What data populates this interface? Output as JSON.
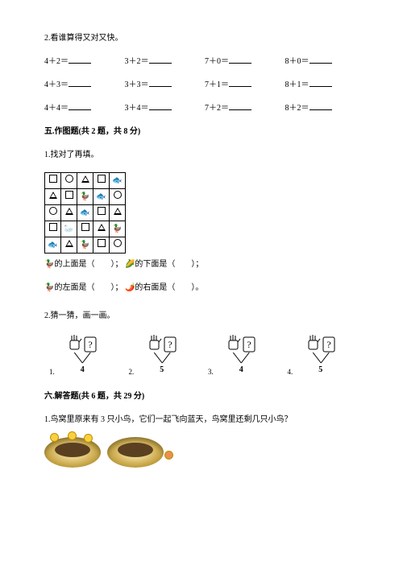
{
  "q2_title": "2.看谁算得又对又快。",
  "arith": {
    "rows": [
      [
        "4＋2＝",
        "3＋2＝",
        "7＋0＝",
        "8＋0＝"
      ],
      [
        "4＋3＝",
        "3＋3＝",
        "7＋1＝",
        "8＋1＝"
      ],
      [
        "4＋4＝",
        "3＋4＝",
        "7＋2＝",
        "8＋2＝"
      ]
    ]
  },
  "section5": {
    "title": "五.作图题(共 2 题，共 8 分)",
    "q1": "1.找对了再填。",
    "lines": {
      "l1a": "的上面是（　　）；",
      "l1b": "的下面是（　　）；",
      "l2a": "的左面是（　　）；",
      "l2b": "的右面是（　　）。"
    },
    "q2": "2.猜一猜，画一画。",
    "guess": [
      {
        "idx": "1.",
        "num": "4"
      },
      {
        "idx": "2.",
        "num": "5"
      },
      {
        "idx": "3.",
        "num": "4"
      },
      {
        "idx": "4.",
        "num": "5"
      }
    ]
  },
  "section6": {
    "title": "六.解答题(共 6 题，共 29 分)",
    "q1": "1.鸟窝里原来有 3 只小鸟，它们一起飞向蓝天，鸟窝里还剩几只小鸟？"
  },
  "grid": {
    "cells": [
      [
        "sq",
        "ci",
        "tr",
        "sq",
        "fish"
      ],
      [
        "tr",
        "sq",
        "duck",
        "fish",
        "ci"
      ],
      [
        "ci",
        "tr",
        "fish",
        "sq",
        "tr"
      ],
      [
        "sq",
        "goose",
        "sq",
        "tr",
        "duck"
      ],
      [
        "fish",
        "tr",
        "duck",
        "sq",
        "ci"
      ]
    ]
  },
  "icons": {
    "duck": "🦆",
    "fish": "🐟",
    "goose": "🦢",
    "corn": "🌽",
    "pepper": "🌶️"
  }
}
